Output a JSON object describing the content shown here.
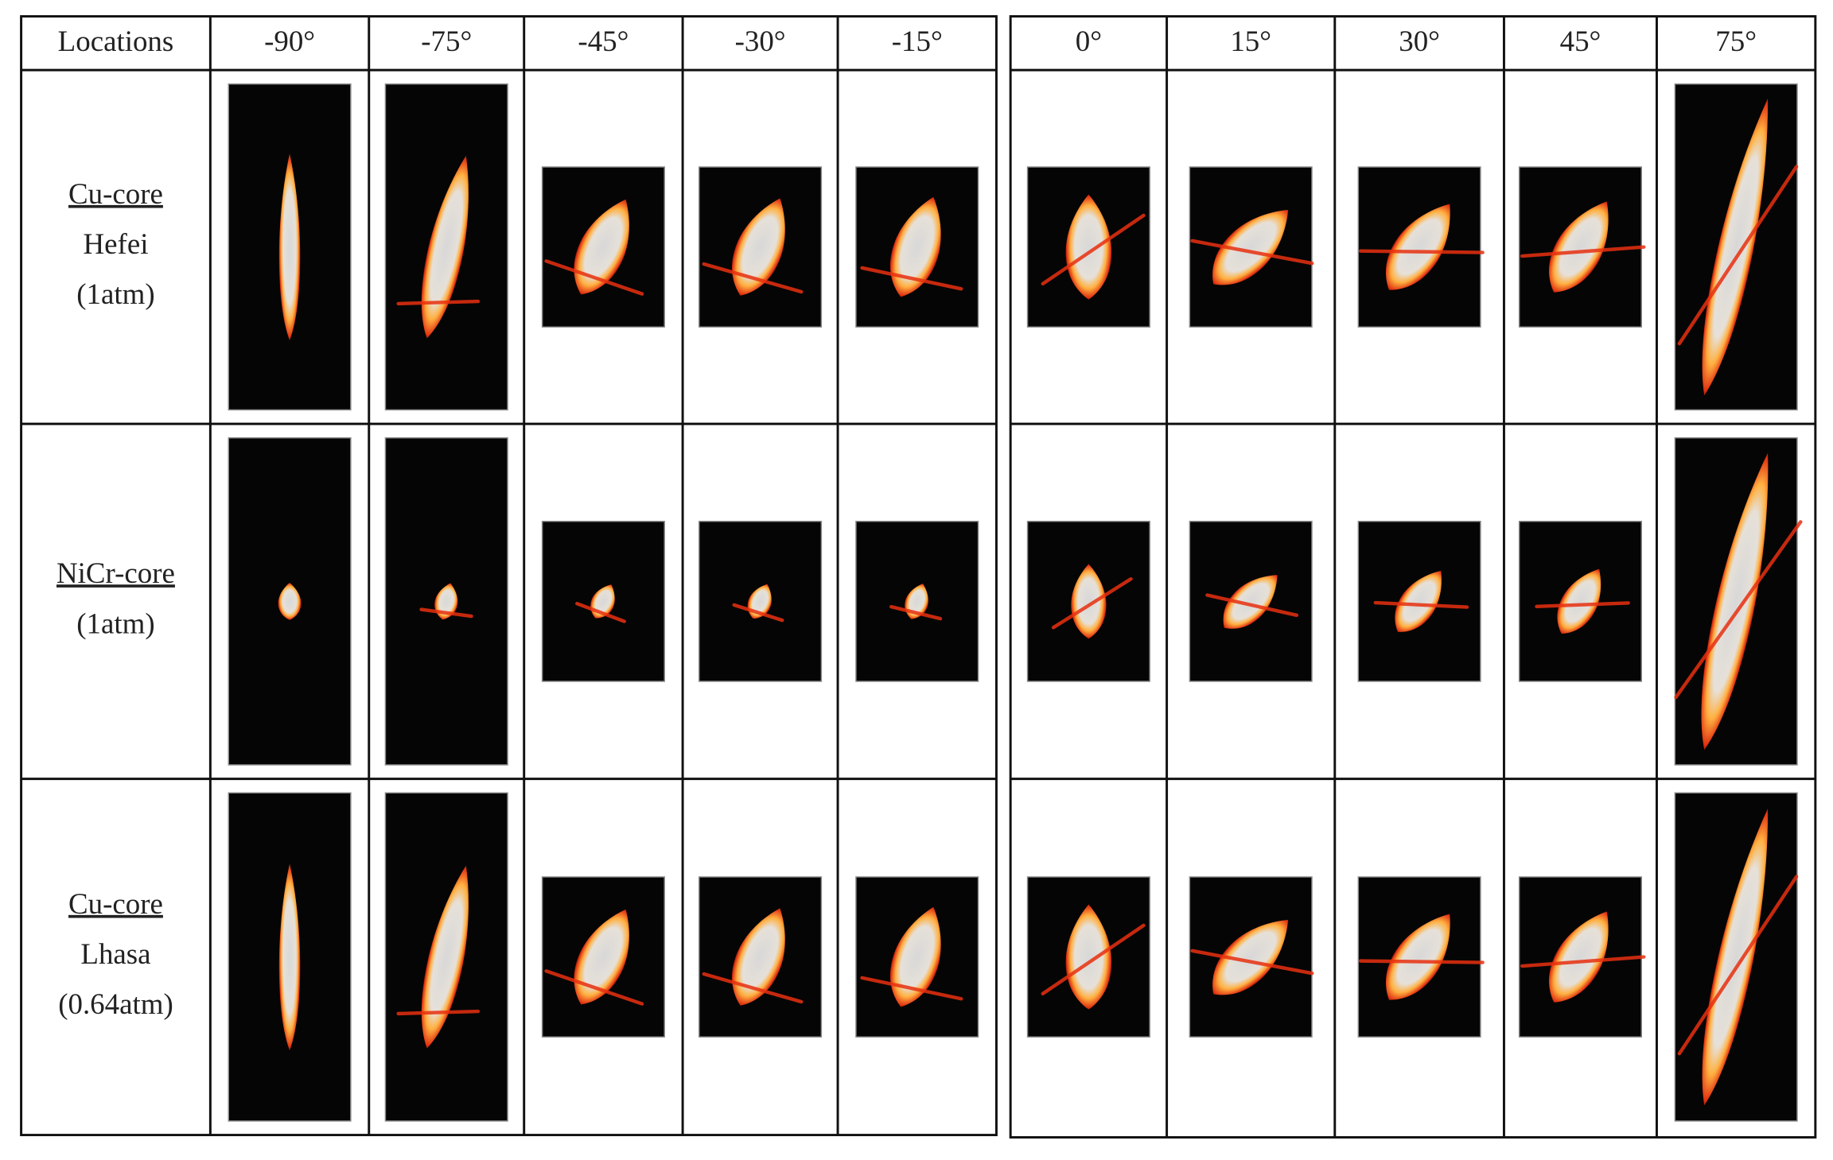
{
  "table": {
    "left_header": [
      "Locations",
      "-90°",
      "-75°",
      "-45°",
      "-30°",
      "-15°"
    ],
    "right_header": [
      "0°",
      "15°",
      "30°",
      "45°",
      "75°"
    ],
    "rows": [
      [
        "Cu-core",
        "Hefei",
        "(1atm)"
      ],
      [
        "NiCr-core",
        "(1atm)"
      ],
      [
        "Cu-core",
        "Lhasa",
        "(0.64atm)"
      ]
    ]
  }
}
